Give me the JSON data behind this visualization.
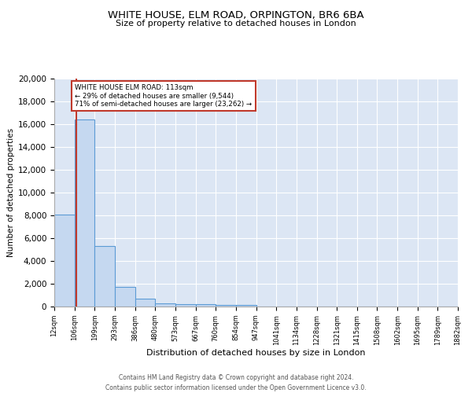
{
  "title1": "WHITE HOUSE, ELM ROAD, ORPINGTON, BR6 6BA",
  "title2": "Size of property relative to detached houses in London",
  "xlabel": "Distribution of detached houses by size in London",
  "ylabel": "Number of detached properties",
  "bin_edges": [
    12,
    106,
    199,
    293,
    386,
    480,
    573,
    667,
    760,
    854,
    947,
    1041,
    1134,
    1228,
    1321,
    1415,
    1508,
    1602,
    1695,
    1789,
    1882
  ],
  "bin_counts": [
    8100,
    16400,
    5300,
    1750,
    700,
    300,
    230,
    200,
    160,
    130,
    0,
    0,
    0,
    0,
    0,
    0,
    0,
    0,
    0,
    0
  ],
  "property_size": 113,
  "property_label": "WHITE HOUSE ELM ROAD: 113sqm",
  "pct_smaller": "29% of detached houses are smaller (9,544)",
  "pct_larger": "71% of semi-detached houses are larger (23,262)",
  "bar_color": "#c5d8f0",
  "bar_edge_color": "#5b9bd5",
  "vline_color": "#c0392b",
  "annotation_box_color": "#c0392b",
  "background_color": "#dce6f4",
  "ylim": [
    0,
    20000
  ],
  "yticks": [
    0,
    2000,
    4000,
    6000,
    8000,
    10000,
    12000,
    14000,
    16000,
    18000,
    20000
  ],
  "footer1": "Contains HM Land Registry data © Crown copyright and database right 2024.",
  "footer2": "Contains public sector information licensed under the Open Government Licence v3.0."
}
